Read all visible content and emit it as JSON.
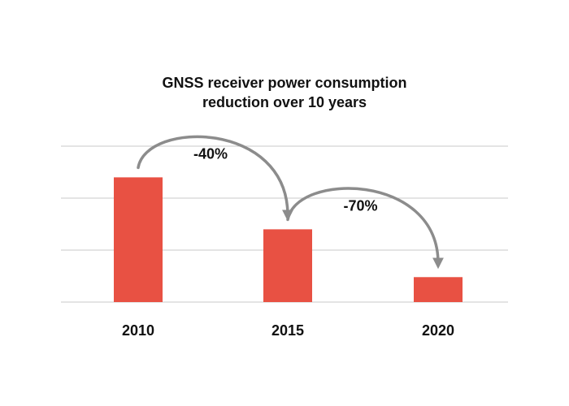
{
  "chart_data": {
    "type": "bar",
    "title_lines": [
      "GNSS receiver power consumption",
      "reduction over 10 years"
    ],
    "categories": [
      "2010",
      "2015",
      "2020"
    ],
    "values": [
      2.4,
      1.4,
      0.48
    ],
    "ylim": [
      0,
      3
    ],
    "grid": true,
    "xlabel": "",
    "ylabel": "",
    "annotations": [
      {
        "label": "-40%",
        "from": "2010",
        "to": "2015"
      },
      {
        "label": "-70%",
        "from": "2015",
        "to": "2020"
      }
    ],
    "colors": {
      "bar": "#e85143",
      "grid": "#c8c8c8",
      "arrow": "#8c8c8c",
      "text": "#111111"
    }
  }
}
